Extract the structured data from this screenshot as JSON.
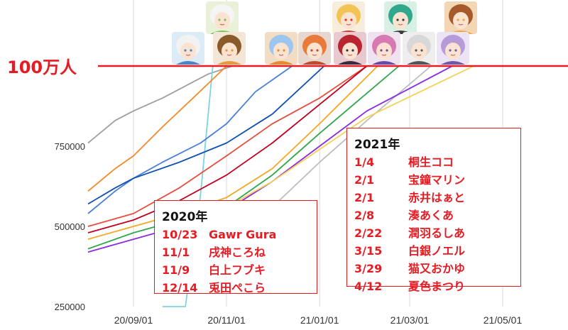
{
  "chart_data": {
    "type": "line",
    "y_ticks": [
      "750000",
      "500000",
      "250000"
    ],
    "x_ticks": [
      "20/09/01",
      "20/11/01",
      "21/01/01",
      "21/03/01",
      "21/05/01"
    ],
    "milestone_label": "100万人",
    "milestone_value": 1000000,
    "colors": {
      "milestone": "#e51c23",
      "grid": "#d9d9d9"
    },
    "series": [
      {
        "color": "#9e9e9e",
        "points": [
          [
            "2020-08-01",
            760000
          ],
          [
            "2020-08-20",
            830000
          ],
          [
            "2020-09-01",
            860000
          ],
          [
            "2020-09-20",
            900000
          ],
          [
            "2020-10-10",
            950000
          ],
          [
            "2020-10-20",
            975000
          ],
          [
            "2020-11-05",
            1000000
          ]
        ]
      },
      {
        "color": "#7fd3e0",
        "points": [
          [
            "2020-09-20",
            0
          ],
          [
            "2020-10-05",
            250000
          ],
          [
            "2020-10-15",
            600000
          ],
          [
            "2020-10-23",
            1000000
          ]
        ]
      },
      {
        "color": "#f5892a",
        "points": [
          [
            "2020-08-01",
            610000
          ],
          [
            "2020-08-20",
            680000
          ],
          [
            "2020-09-01",
            720000
          ],
          [
            "2020-09-20",
            810000
          ],
          [
            "2020-10-10",
            900000
          ],
          [
            "2020-11-01",
            1000000
          ]
        ]
      },
      {
        "color": "#4a7fd8",
        "points": [
          [
            "2020-08-01",
            540000
          ],
          [
            "2020-08-20",
            610000
          ],
          [
            "2020-09-01",
            650000
          ],
          [
            "2020-09-20",
            700000
          ],
          [
            "2020-10-15",
            760000
          ],
          [
            "2020-11-01",
            820000
          ],
          [
            "2020-11-20",
            920000
          ],
          [
            "2020-12-14",
            1000000
          ]
        ]
      },
      {
        "color": "#1150b0",
        "points": [
          [
            "2020-08-01",
            570000
          ],
          [
            "2020-08-20",
            620000
          ],
          [
            "2020-09-01",
            650000
          ],
          [
            "2020-10-01",
            700000
          ],
          [
            "2020-11-01",
            760000
          ],
          [
            "2020-12-01",
            850000
          ],
          [
            "2021-01-04",
            1000000
          ]
        ]
      },
      {
        "color": "#e74c3c",
        "points": [
          [
            "2020-08-01",
            500000
          ],
          [
            "2020-09-01",
            540000
          ],
          [
            "2020-10-01",
            620000
          ],
          [
            "2020-11-01",
            720000
          ],
          [
            "2020-12-01",
            820000
          ],
          [
            "2021-01-01",
            900000
          ],
          [
            "2021-02-01",
            1000000
          ]
        ]
      },
      {
        "color": "#c0001f",
        "points": [
          [
            "2020-08-01",
            480000
          ],
          [
            "2020-09-01",
            520000
          ],
          [
            "2020-10-01",
            580000
          ],
          [
            "2020-11-01",
            660000
          ],
          [
            "2020-12-01",
            760000
          ],
          [
            "2021-01-01",
            880000
          ],
          [
            "2021-02-01",
            1000000
          ]
        ]
      },
      {
        "color": "#f5a623",
        "points": [
          [
            "2020-08-01",
            460000
          ],
          [
            "2020-09-01",
            500000
          ],
          [
            "2020-10-01",
            540000
          ],
          [
            "2020-11-01",
            590000
          ],
          [
            "2020-12-01",
            680000
          ],
          [
            "2021-01-01",
            820000
          ],
          [
            "2021-02-08",
            1000000
          ]
        ]
      },
      {
        "color": "#2fa64a",
        "points": [
          [
            "2020-08-01",
            430000
          ],
          [
            "2020-09-01",
            480000
          ],
          [
            "2020-10-01",
            520000
          ],
          [
            "2020-11-01",
            560000
          ],
          [
            "2020-12-01",
            660000
          ],
          [
            "2021-01-01",
            790000
          ],
          [
            "2021-02-22",
            1000000
          ]
        ]
      },
      {
        "color": "#bdbdbd",
        "points": [
          [
            "2020-10-01",
            380000
          ],
          [
            "2020-11-01",
            450000
          ],
          [
            "2020-12-01",
            560000
          ],
          [
            "2021-01-01",
            700000
          ],
          [
            "2021-02-01",
            830000
          ],
          [
            "2021-03-15",
            1000000
          ]
        ]
      },
      {
        "color": "#8a2be2",
        "points": [
          [
            "2020-08-01",
            420000
          ],
          [
            "2020-09-01",
            460000
          ],
          [
            "2020-10-01",
            500000
          ],
          [
            "2020-11-01",
            550000
          ],
          [
            "2020-12-01",
            640000
          ],
          [
            "2021-01-01",
            750000
          ],
          [
            "2021-02-01",
            860000
          ],
          [
            "2021-03-29",
            1000000
          ]
        ]
      },
      {
        "color": "#f6d155",
        "points": [
          [
            "2020-09-20",
            400000
          ],
          [
            "2020-11-01",
            560000
          ],
          [
            "2020-12-01",
            640000
          ],
          [
            "2021-01-01",
            740000
          ],
          [
            "2021-02-01",
            840000
          ],
          [
            "2021-04-12",
            1000000
          ]
        ]
      }
    ]
  },
  "box_2020": {
    "title": "2020年",
    "rows": [
      {
        "date": "10/23",
        "name": "Gawr Gura"
      },
      {
        "date": "11/1",
        "name": "戌神ころね"
      },
      {
        "date": "11/9",
        "name": "白上フブキ"
      },
      {
        "date": "12/14",
        "name": "兎田ぺこら"
      }
    ]
  },
  "box_2021": {
    "title": "2021年",
    "rows": [
      {
        "date": "1/4",
        "name": "桐生ココ"
      },
      {
        "date": "2/1",
        "name": "宝鐘マリン"
      },
      {
        "date": "2/1",
        "name": "赤井はぁと"
      },
      {
        "date": "2/8",
        "name": "湊あくあ"
      },
      {
        "date": "2/22",
        "name": "潤羽るしあ"
      },
      {
        "date": "3/15",
        "name": "白銀ノエル"
      },
      {
        "date": "3/29",
        "name": "猫又おかゆ"
      },
      {
        "date": "4/12",
        "name": "夏色まつり"
      }
    ]
  },
  "avatars": [
    {
      "icon": "avatar-gura",
      "bg": "#dcecf7",
      "hair": "#f2f2f2",
      "accent": "#4a86c5"
    },
    {
      "icon": "avatar-fubuki",
      "bg": "#e9f2d8",
      "hair": "#f5f5f5",
      "accent": "#7fbf5a"
    },
    {
      "icon": "avatar-korone",
      "bg": "#f3e6d6",
      "hair": "#8b5a2b",
      "accent": "#e69a3c"
    },
    {
      "icon": "avatar-pekora",
      "bg": "#f2ddc4",
      "hair": "#9cc6f0",
      "accent": "#e58b2a"
    },
    {
      "icon": "avatar-coco",
      "bg": "#e8d7cf",
      "hair": "#ea7a3a",
      "accent": "#c24a2a"
    },
    {
      "icon": "avatar-haato",
      "bg": "#f6eddc",
      "hair": "#f2c453",
      "accent": "#d9342b"
    },
    {
      "icon": "avatar-marine",
      "bg": "#e9c9d0",
      "hair": "#b8242f",
      "accent": "#3a2a3a"
    },
    {
      "icon": "avatar-rushia",
      "bg": "#d8efe3",
      "hair": "#2fa88c",
      "accent": "#3a3a3a"
    },
    {
      "icon": "avatar-aqua",
      "bg": "#efe3f0",
      "hair": "#d77ab3",
      "accent": "#6a4aa8"
    },
    {
      "icon": "avatar-noel",
      "bg": "#eeeeee",
      "hair": "#d8d8d8",
      "accent": "#555555"
    },
    {
      "icon": "avatar-matsuri",
      "bg": "#f3d7b4",
      "hair": "#a65a2c",
      "accent": "#f1a63a"
    },
    {
      "icon": "avatar-okayu",
      "bg": "#ece3f5",
      "hair": "#b79bd8",
      "accent": "#6f5aa8"
    }
  ]
}
